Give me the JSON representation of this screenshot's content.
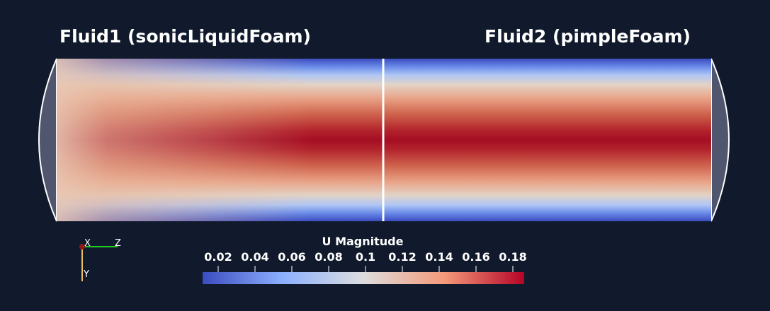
{
  "labels": {
    "fluid1": "Fluid1 (sonicLiquidFoam)",
    "fluid2": "Fluid2 (pimpleFoam)"
  },
  "colorbar": {
    "title": "U Magnitude",
    "ticks": [
      0.02,
      0.04,
      0.06,
      0.08,
      0.1,
      0.12,
      0.14,
      0.16,
      0.18
    ]
  },
  "axes": {
    "x": "X",
    "y": "Y",
    "z": "Z"
  }
}
